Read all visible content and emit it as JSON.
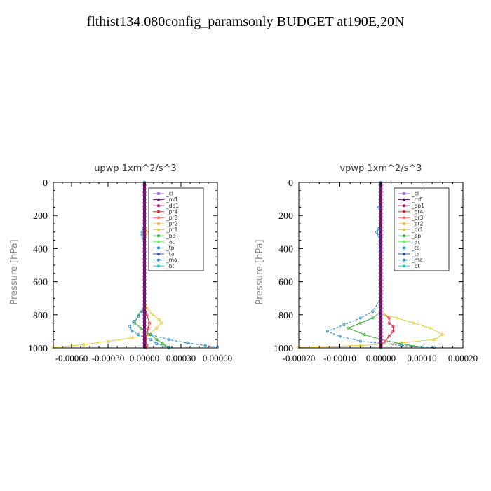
{
  "title": "flthist134.080config_paramsonly  BUDGET at190E,20N",
  "chart_data": [
    {
      "type": "line",
      "title": "upwp   1xm^2/s^3",
      "ylabel": "Pressure [hPa]",
      "xlim": [
        -0.00075,
        0.0006
      ],
      "ylim": [
        0,
        1000
      ],
      "y_reversed": true,
      "xticks": [
        -0.0006,
        -0.0003,
        0.0,
        0.0003,
        0.0006
      ],
      "xtick_labels": [
        "-0.00060",
        "-0.00030",
        "0.00000",
        "0.00030",
        "0.00060"
      ],
      "yticks": [
        0,
        200,
        400,
        600,
        800,
        1000
      ],
      "ytick_labels": [
        "0",
        "200",
        "400",
        "600",
        "800",
        "1000"
      ],
      "legend_position": "top-right",
      "legend": [
        "_cl",
        "_mfl",
        "_dp1",
        "_pr4",
        "_pr3",
        "_pr2",
        "_pr1",
        "_bp",
        "_ac",
        "_tp",
        "_ta",
        "_ma",
        "_bt"
      ],
      "series": [
        {
          "name": "_cl",
          "color": "#9966cc",
          "x": [
            0,
            0,
            0,
            0,
            0,
            0,
            0,
            0,
            0,
            0,
            0
          ],
          "y": [
            0,
            100,
            200,
            300,
            400,
            500,
            600,
            700,
            800,
            900,
            1000
          ]
        },
        {
          "name": "_mfl",
          "color": "#6a0f6a",
          "x": [
            0,
            0,
            0,
            0,
            0,
            0,
            0,
            0,
            0,
            0,
            0
          ],
          "y": [
            0,
            100,
            200,
            300,
            400,
            500,
            600,
            700,
            800,
            900,
            1000
          ]
        },
        {
          "name": "_dp1",
          "color": "#b0156a",
          "x": [
            0,
            0,
            0,
            0,
            0,
            0,
            0,
            0,
            0,
            0,
            0
          ],
          "y": [
            0,
            100,
            200,
            300,
            400,
            500,
            600,
            700,
            800,
            900,
            1000
          ]
        },
        {
          "name": "_pr4",
          "color": "#e8203c",
          "x": [
            0,
            0,
            0,
            0,
            0,
            0,
            2e-05,
            4e-05,
            3e-05,
            2e-05,
            1e-05,
            2e-05,
            1e-05
          ],
          "y": [
            0,
            200,
            400,
            600,
            700,
            750,
            800,
            850,
            880,
            920,
            960,
            985,
            1000
          ]
        },
        {
          "name": "_pr3",
          "color": "#ff7766",
          "x": [
            0,
            0,
            0,
            0,
            0,
            0,
            0,
            0,
            0,
            0,
            0
          ],
          "y": [
            0,
            100,
            200,
            300,
            400,
            500,
            600,
            700,
            800,
            900,
            1000
          ]
        },
        {
          "name": "_pr2",
          "color": "#ffaa33",
          "x": [
            0,
            0,
            0,
            0,
            0,
            0,
            0,
            0,
            0,
            0,
            0
          ],
          "y": [
            0,
            100,
            200,
            300,
            400,
            500,
            600,
            700,
            800,
            900,
            1000
          ]
        },
        {
          "name": "_pr1",
          "color": "#e8cc33",
          "x": [
            0,
            0,
            0,
            0,
            1e-05,
            2e-05,
            1e-05,
            0,
            0,
            2e-05,
            7e-05,
            0.00012,
            0.00014,
            0.0001,
            3e-05,
            -0.0001,
            -0.0003,
            -0.0005,
            -0.00075
          ],
          "y": [
            0,
            150,
            240,
            260,
            280,
            300,
            320,
            360,
            700,
            760,
            800,
            830,
            850,
            880,
            920,
            940,
            960,
            980,
            997
          ]
        },
        {
          "name": "_bp",
          "color": "#33aa33",
          "x": [
            0,
            0,
            0,
            0,
            -5e-05,
            -8e-05,
            -3e-05,
            5e-05,
            0.0001,
            0.00015,
            0.0002,
            0.0002
          ],
          "y": [
            0,
            200,
            500,
            750,
            800,
            850,
            880,
            920,
            950,
            975,
            995,
            1000
          ]
        },
        {
          "name": "_ac",
          "color": "#66ee66",
          "x": [
            0,
            0,
            0,
            0,
            0,
            0,
            0,
            0,
            0,
            0,
            0
          ],
          "y": [
            0,
            100,
            200,
            300,
            400,
            500,
            600,
            700,
            800,
            900,
            1000
          ]
        },
        {
          "name": "_tp",
          "color": "#2288cc",
          "x": [
            0,
            0,
            0,
            0,
            -1e-05,
            -2e-05,
            -2e-05,
            -1e-05,
            0,
            0,
            -2e-05,
            -5e-05,
            -9e-05,
            -0.00012,
            -0.0001,
            -5e-05,
            5e-05,
            0.0001,
            0.0002
          ],
          "y": [
            0,
            150,
            240,
            260,
            280,
            300,
            320,
            340,
            700,
            740,
            780,
            810,
            840,
            870,
            900,
            920,
            950,
            975,
            995
          ]
        },
        {
          "name": "_ta",
          "color": "#3355bb",
          "x": [
            0,
            0,
            0,
            0,
            0,
            0,
            0,
            0,
            0,
            0,
            0
          ],
          "y": [
            0,
            100,
            200,
            300,
            400,
            500,
            600,
            700,
            800,
            900,
            1000
          ]
        },
        {
          "name": "_ma",
          "color": "#2288cc",
          "x": [
            0,
            0,
            0,
            0,
            0,
            0,
            0,
            0,
            0,
            5e-05,
            0.0002,
            0.00035,
            0.0005,
            0.0006
          ],
          "y": [
            0,
            200,
            400,
            600,
            750,
            800,
            850,
            880,
            900,
            920,
            950,
            970,
            985,
            995
          ]
        },
        {
          "name": "_bt",
          "color": "#22cccc",
          "x": [
            0,
            0,
            0,
            0,
            0,
            0,
            0,
            0,
            0,
            0,
            0
          ],
          "y": [
            0,
            100,
            200,
            300,
            400,
            500,
            600,
            700,
            800,
            900,
            1000
          ]
        }
      ]
    },
    {
      "type": "line",
      "title": "vpwp   1xm^2/s^3",
      "ylabel": "Pressure [hPa]",
      "xlim": [
        -0.0002,
        0.0002
      ],
      "ylim": [
        0,
        1000
      ],
      "y_reversed": true,
      "xticks": [
        -0.0002,
        -0.0001,
        0.0,
        0.0001,
        0.0002
      ],
      "xtick_labels": [
        "-0.00020",
        "-0.00010",
        "0.00000",
        "0.00010",
        "0.00020"
      ],
      "yticks": [
        0,
        200,
        400,
        600,
        800,
        1000
      ],
      "ytick_labels": [
        "0",
        "200",
        "400",
        "600",
        "800",
        "1000"
      ],
      "legend_position": "top-right",
      "legend": [
        "_cl",
        "_mfl",
        "_dp1",
        "_pr4",
        "_pr3",
        "_pr2",
        "_pr1",
        "_bp",
        "_ac",
        "_tp",
        "_ta",
        "_ma",
        "_bt"
      ],
      "series": [
        {
          "name": "_cl",
          "color": "#9966cc",
          "x": [
            0,
            0,
            0,
            0,
            0,
            0,
            0,
            0,
            0,
            0,
            0
          ],
          "y": [
            0,
            100,
            200,
            300,
            400,
            500,
            600,
            700,
            800,
            900,
            1000
          ]
        },
        {
          "name": "_mfl",
          "color": "#6a0f6a",
          "x": [
            0,
            0,
            0,
            0,
            0,
            0,
            0,
            0,
            0,
            0,
            0
          ],
          "y": [
            0,
            100,
            200,
            300,
            400,
            500,
            600,
            700,
            800,
            900,
            1000
          ]
        },
        {
          "name": "_dp1",
          "color": "#b0156a",
          "x": [
            0,
            0,
            0,
            0,
            0,
            0,
            0,
            0,
            0,
            0,
            0
          ],
          "y": [
            0,
            100,
            200,
            300,
            400,
            500,
            600,
            700,
            800,
            900,
            1000
          ]
        },
        {
          "name": "_pr4",
          "color": "#e8203c",
          "x": [
            0,
            0,
            0,
            0,
            1e-05,
            2e-05,
            2e-05,
            3e-05,
            3e-05,
            2e-05,
            1e-05,
            0
          ],
          "y": [
            0,
            300,
            600,
            780,
            800,
            820,
            850,
            870,
            900,
            930,
            960,
            995
          ]
        },
        {
          "name": "_pr3",
          "color": "#ff7766",
          "x": [
            0,
            0,
            0,
            0,
            0,
            0,
            0,
            0,
            0,
            0,
            0
          ],
          "y": [
            0,
            100,
            200,
            300,
            400,
            500,
            600,
            700,
            800,
            900,
            1000
          ]
        },
        {
          "name": "_pr2",
          "color": "#ffaa33",
          "x": [
            0,
            0,
            0,
            0,
            0,
            0,
            0,
            0,
            0,
            0,
            0
          ],
          "y": [
            0,
            100,
            200,
            300,
            400,
            500,
            600,
            700,
            800,
            900,
            1000
          ]
        },
        {
          "name": "_pr1",
          "color": "#e8cc33",
          "x": [
            0,
            0,
            0,
            1e-05,
            4e-05,
            8e-05,
            0.00012,
            0.00015,
            0.00013,
            5e-05,
            -5e-05,
            -0.0002
          ],
          "y": [
            0,
            600,
            780,
            800,
            820,
            850,
            880,
            920,
            950,
            970,
            985,
            997
          ]
        },
        {
          "name": "_bp",
          "color": "#33aa33",
          "x": [
            0,
            0,
            0,
            -2e-05,
            -5e-05,
            -8e-05,
            -4e-05,
            0,
            5e-05,
            0.0001
          ],
          "y": [
            0,
            500,
            780,
            820,
            850,
            880,
            920,
            950,
            975,
            995
          ]
        },
        {
          "name": "_ac",
          "color": "#66ee66",
          "x": [
            0,
            0,
            0,
            0,
            0,
            0,
            0,
            0,
            0,
            0,
            0
          ],
          "y": [
            0,
            100,
            200,
            300,
            400,
            500,
            600,
            700,
            800,
            900,
            1000
          ]
        },
        {
          "name": "_tp",
          "color": "#2288cc",
          "x": [
            0,
            0,
            -5e-06,
            0,
            0,
            -5e-06,
            -1e-05,
            -5e-06,
            0,
            -2e-05,
            -5e-05,
            -9e-05,
            -0.00013,
            -0.0001,
            -5e-05,
            5e-05,
            0.00013
          ],
          "y": [
            0,
            120,
            150,
            180,
            250,
            280,
            300,
            320,
            700,
            780,
            820,
            860,
            900,
            930,
            960,
            985,
            997
          ]
        },
        {
          "name": "_ta",
          "color": "#3355bb",
          "x": [
            0,
            0,
            0,
            0,
            0,
            0,
            0,
            0,
            0,
            0,
            0
          ],
          "y": [
            0,
            100,
            200,
            300,
            400,
            500,
            600,
            700,
            800,
            900,
            1000
          ]
        },
        {
          "name": "_ma",
          "color": "#2288cc",
          "x": [
            0,
            0,
            0,
            0,
            0,
            0,
            0,
            0,
            0,
            0,
            0
          ],
          "y": [
            0,
            100,
            200,
            300,
            400,
            500,
            600,
            700,
            800,
            900,
            1000
          ]
        },
        {
          "name": "_bt",
          "color": "#22cccc",
          "x": [
            0,
            0,
            0,
            0,
            0,
            0,
            0,
            0,
            0,
            0,
            0
          ],
          "y": [
            0,
            100,
            200,
            300,
            400,
            500,
            600,
            700,
            800,
            900,
            1000
          ]
        }
      ]
    }
  ]
}
